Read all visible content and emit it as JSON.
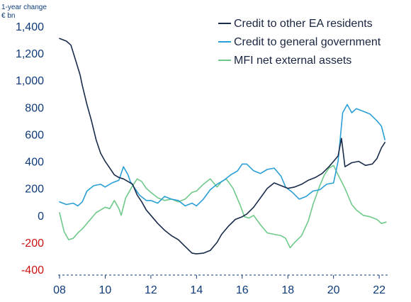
{
  "chart_data": {
    "type": "line",
    "title": "",
    "ylabel": "1-year change\n€ bn",
    "xlabel": "",
    "ylim": [
      -400,
      1400
    ],
    "xlim": [
      2008,
      2022.4
    ],
    "yticks": [
      {
        "value": 1400,
        "label": "1,400"
      },
      {
        "value": 1200,
        "label": "1,200"
      },
      {
        "value": 1000,
        "label": "1,000"
      },
      {
        "value": 800,
        "label": "800"
      },
      {
        "value": 600,
        "label": "600"
      },
      {
        "value": 400,
        "label": "400"
      },
      {
        "value": 200,
        "label": "200"
      },
      {
        "value": 0,
        "label": "0"
      },
      {
        "value": -200,
        "label": "-200"
      },
      {
        "value": -400,
        "label": "-400"
      }
    ],
    "xticks": [
      {
        "value": 2008,
        "label": "08"
      },
      {
        "value": 2010,
        "label": "10"
      },
      {
        "value": 2012,
        "label": "12"
      },
      {
        "value": 2014,
        "label": "14"
      },
      {
        "value": 2016,
        "label": "16"
      },
      {
        "value": 2018,
        "label": "18"
      },
      {
        "value": 2020,
        "label": "20"
      },
      {
        "value": 2022,
        "label": "22"
      }
    ],
    "legend_position": "top-right",
    "grid": false,
    "series": [
      {
        "name": "Credit to other EA residents",
        "color": "#1a2b4a",
        "points": [
          [
            2008.0,
            1310
          ],
          [
            2008.3,
            1290
          ],
          [
            2008.5,
            1260
          ],
          [
            2008.7,
            1150
          ],
          [
            2008.9,
            1040
          ],
          [
            2009.0,
            960
          ],
          [
            2009.2,
            820
          ],
          [
            2009.4,
            700
          ],
          [
            2009.6,
            560
          ],
          [
            2009.8,
            460
          ],
          [
            2010.0,
            400
          ],
          [
            2010.2,
            350
          ],
          [
            2010.4,
            300
          ],
          [
            2010.6,
            280
          ],
          [
            2010.8,
            270
          ],
          [
            2011.0,
            250
          ],
          [
            2011.2,
            230
          ],
          [
            2011.4,
            150
          ],
          [
            2011.6,
            100
          ],
          [
            2011.8,
            40
          ],
          [
            2012.0,
            0
          ],
          [
            2012.3,
            -60
          ],
          [
            2012.6,
            -110
          ],
          [
            2012.9,
            -150
          ],
          [
            2013.2,
            -180
          ],
          [
            2013.5,
            -230
          ],
          [
            2013.8,
            -280
          ],
          [
            2014.0,
            -285
          ],
          [
            2014.3,
            -280
          ],
          [
            2014.6,
            -260
          ],
          [
            2014.9,
            -200
          ],
          [
            2015.1,
            -140
          ],
          [
            2015.4,
            -80
          ],
          [
            2015.7,
            -30
          ],
          [
            2016.0,
            -10
          ],
          [
            2016.2,
            10
          ],
          [
            2016.5,
            60
          ],
          [
            2016.8,
            130
          ],
          [
            2017.1,
            200
          ],
          [
            2017.4,
            240
          ],
          [
            2017.7,
            220
          ],
          [
            2018.0,
            200
          ],
          [
            2018.3,
            210
          ],
          [
            2018.6,
            230
          ],
          [
            2018.9,
            260
          ],
          [
            2019.2,
            280
          ],
          [
            2019.5,
            310
          ],
          [
            2019.8,
            360
          ],
          [
            2020.0,
            400
          ],
          [
            2020.2,
            440
          ],
          [
            2020.35,
            570
          ],
          [
            2020.5,
            360
          ],
          [
            2020.8,
            390
          ],
          [
            2021.1,
            400
          ],
          [
            2021.4,
            370
          ],
          [
            2021.7,
            380
          ],
          [
            2021.9,
            420
          ],
          [
            2022.1,
            500
          ],
          [
            2022.25,
            540
          ]
        ]
      },
      {
        "name": "Credit to general government",
        "color": "#2a9fd6",
        "points": [
          [
            2008.0,
            100
          ],
          [
            2008.3,
            80
          ],
          [
            2008.6,
            90
          ],
          [
            2008.8,
            70
          ],
          [
            2009.0,
            100
          ],
          [
            2009.2,
            180
          ],
          [
            2009.5,
            220
          ],
          [
            2009.8,
            230
          ],
          [
            2010.0,
            210
          ],
          [
            2010.3,
            240
          ],
          [
            2010.6,
            260
          ],
          [
            2010.8,
            360
          ],
          [
            2011.0,
            300
          ],
          [
            2011.1,
            250
          ],
          [
            2011.3,
            200
          ],
          [
            2011.5,
            150
          ],
          [
            2011.8,
            110
          ],
          [
            2012.0,
            110
          ],
          [
            2012.3,
            90
          ],
          [
            2012.6,
            140
          ],
          [
            2012.9,
            120
          ],
          [
            2013.2,
            110
          ],
          [
            2013.5,
            70
          ],
          [
            2013.8,
            90
          ],
          [
            2014.0,
            70
          ],
          [
            2014.3,
            120
          ],
          [
            2014.6,
            190
          ],
          [
            2014.9,
            230
          ],
          [
            2015.2,
            260
          ],
          [
            2015.5,
            300
          ],
          [
            2015.8,
            330
          ],
          [
            2016.0,
            380
          ],
          [
            2016.2,
            380
          ],
          [
            2016.5,
            330
          ],
          [
            2016.8,
            310
          ],
          [
            2017.1,
            340
          ],
          [
            2017.4,
            350
          ],
          [
            2017.7,
            290
          ],
          [
            2017.9,
            210
          ],
          [
            2018.2,
            170
          ],
          [
            2018.5,
            120
          ],
          [
            2018.8,
            140
          ],
          [
            2019.1,
            180
          ],
          [
            2019.4,
            190
          ],
          [
            2019.7,
            230
          ],
          [
            2020.0,
            240
          ],
          [
            2020.2,
            400
          ],
          [
            2020.4,
            760
          ],
          [
            2020.6,
            820
          ],
          [
            2020.8,
            760
          ],
          [
            2021.0,
            790
          ],
          [
            2021.3,
            770
          ],
          [
            2021.6,
            750
          ],
          [
            2021.9,
            700
          ],
          [
            2022.1,
            660
          ],
          [
            2022.25,
            560
          ]
        ]
      },
      {
        "name": "MFI net external assets",
        "color": "#6fc98a",
        "points": [
          [
            2008.0,
            20
          ],
          [
            2008.2,
            -120
          ],
          [
            2008.4,
            -180
          ],
          [
            2008.6,
            -170
          ],
          [
            2008.8,
            -130
          ],
          [
            2009.0,
            -100
          ],
          [
            2009.2,
            -60
          ],
          [
            2009.4,
            -20
          ],
          [
            2009.6,
            20
          ],
          [
            2009.8,
            40
          ],
          [
            2010.0,
            60
          ],
          [
            2010.2,
            50
          ],
          [
            2010.4,
            110
          ],
          [
            2010.6,
            50
          ],
          [
            2010.7,
            0
          ],
          [
            2010.9,
            130
          ],
          [
            2011.0,
            160
          ],
          [
            2011.2,
            220
          ],
          [
            2011.4,
            270
          ],
          [
            2011.6,
            250
          ],
          [
            2011.8,
            200
          ],
          [
            2012.0,
            170
          ],
          [
            2012.3,
            130
          ],
          [
            2012.6,
            110
          ],
          [
            2012.9,
            120
          ],
          [
            2013.2,
            100
          ],
          [
            2013.5,
            120
          ],
          [
            2013.8,
            170
          ],
          [
            2014.0,
            180
          ],
          [
            2014.3,
            230
          ],
          [
            2014.6,
            270
          ],
          [
            2014.9,
            210
          ],
          [
            2015.1,
            250
          ],
          [
            2015.3,
            270
          ],
          [
            2015.6,
            200
          ],
          [
            2015.9,
            80
          ],
          [
            2016.1,
            -10
          ],
          [
            2016.3,
            -20
          ],
          [
            2016.5,
            0
          ],
          [
            2016.8,
            -70
          ],
          [
            2017.1,
            -130
          ],
          [
            2017.4,
            -140
          ],
          [
            2017.7,
            -150
          ],
          [
            2017.9,
            -170
          ],
          [
            2018.1,
            -240
          ],
          [
            2018.3,
            -200
          ],
          [
            2018.6,
            -150
          ],
          [
            2018.9,
            -40
          ],
          [
            2019.1,
            80
          ],
          [
            2019.4,
            220
          ],
          [
            2019.6,
            300
          ],
          [
            2019.8,
            350
          ],
          [
            2020.0,
            370
          ],
          [
            2020.2,
            300
          ],
          [
            2020.5,
            200
          ],
          [
            2020.8,
            80
          ],
          [
            2021.0,
            40
          ],
          [
            2021.3,
            0
          ],
          [
            2021.6,
            -10
          ],
          [
            2021.9,
            -30
          ],
          [
            2022.1,
            -60
          ],
          [
            2022.3,
            -50
          ]
        ]
      }
    ]
  }
}
